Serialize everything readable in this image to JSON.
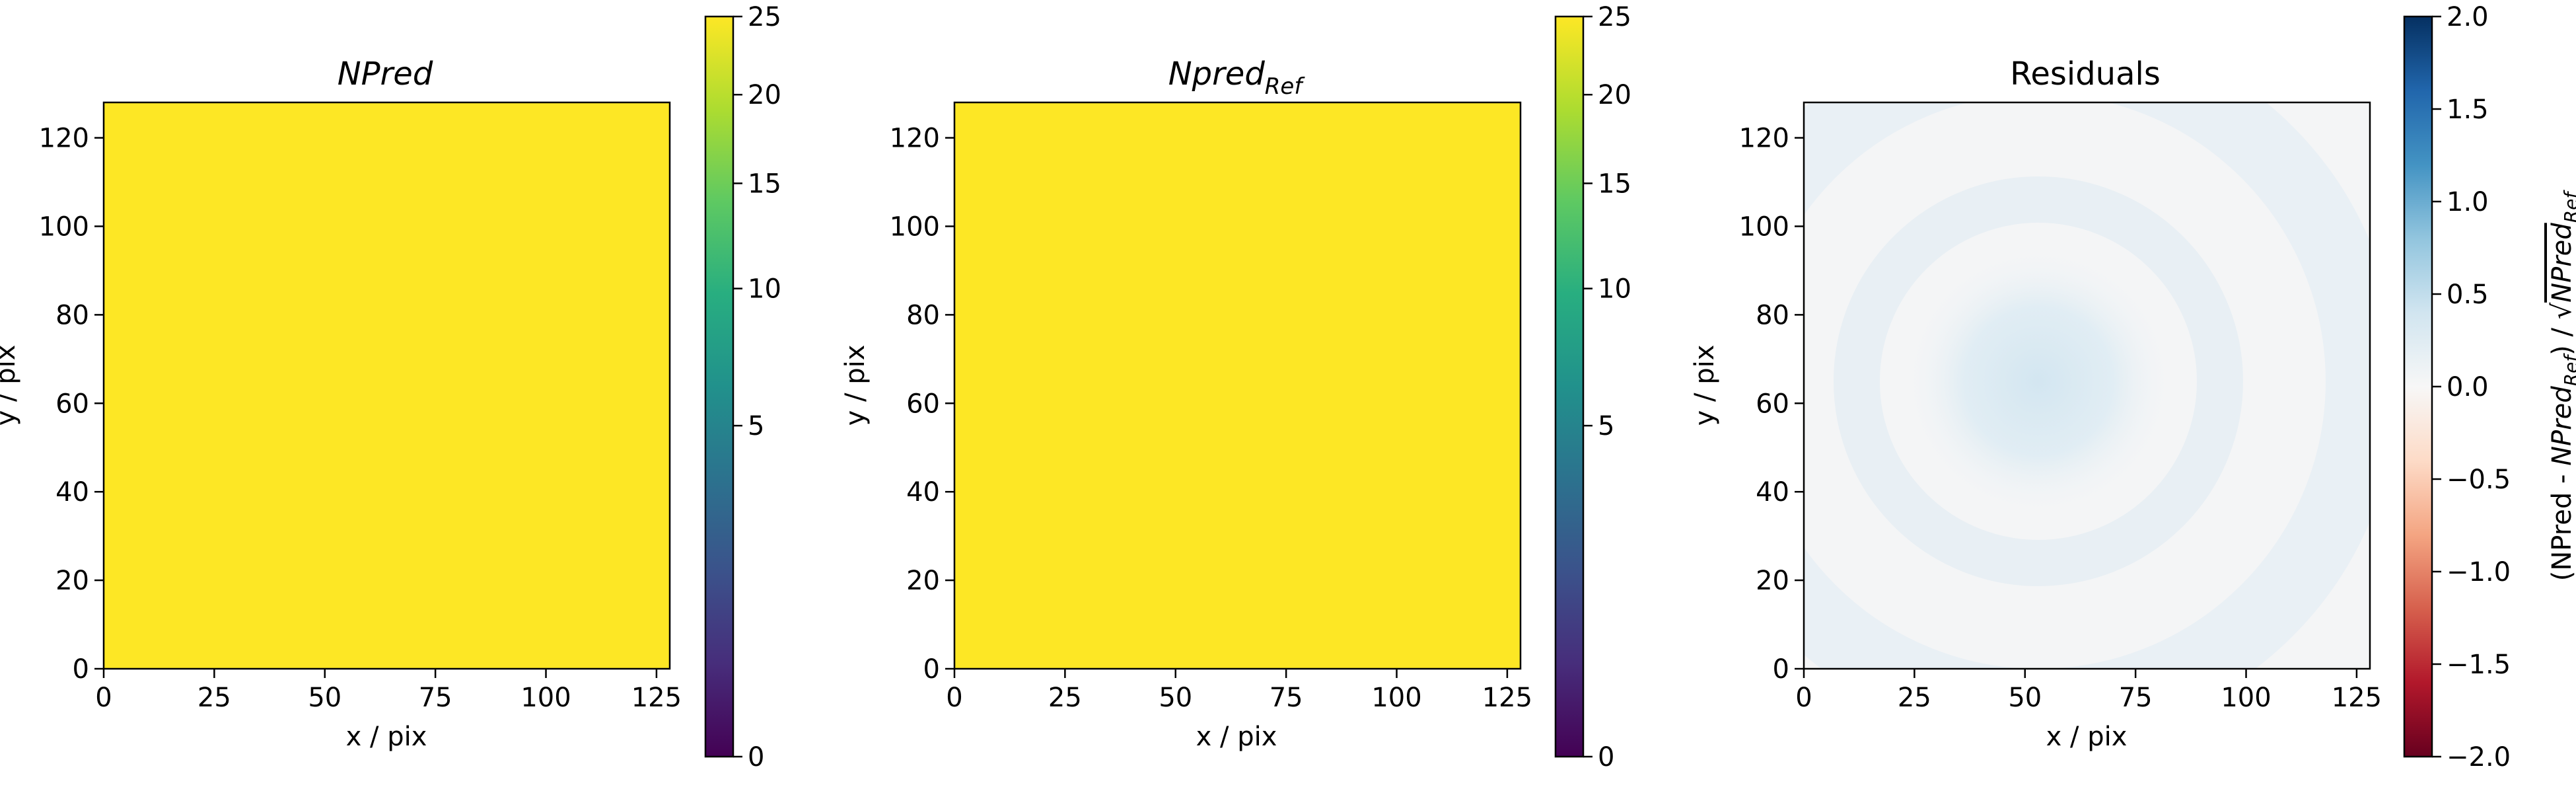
{
  "colors": {
    "heatmap_fill": "#fde725",
    "viridis_stops": [
      "#440154",
      "#472d7b",
      "#3b528b",
      "#2c728e",
      "#21918c",
      "#28ae80",
      "#5ec962",
      "#addc30",
      "#fde725"
    ],
    "rdbu_stops": [
      "#67001f",
      "#b2182b",
      "#d6604d",
      "#f4a582",
      "#fddbc7",
      "#f7f7f7",
      "#d1e5f0",
      "#92c5de",
      "#4393c3",
      "#2166ac",
      "#053061"
    ],
    "residual_background": "#f4f5f6"
  },
  "chart_data": [
    {
      "type": "heatmap",
      "title": "NPred",
      "title_style": "italic",
      "xlabel": "x / pix",
      "ylabel": "y / pix",
      "xlim": [
        0,
        128
      ],
      "ylim": [
        0,
        128
      ],
      "xticks": [
        0,
        25,
        50,
        75,
        100,
        125
      ],
      "yticks": [
        0,
        20,
        40,
        60,
        80,
        100,
        120
      ],
      "xtick_labels": [
        "0",
        "25",
        "50",
        "75",
        "100",
        "125"
      ],
      "ytick_labels": [
        "0",
        "20",
        "40",
        "60",
        "80",
        "100",
        "120"
      ],
      "values": "uniform",
      "approx_value": 25,
      "colorbar": {
        "colormap": "viridis",
        "scale": "sqrt",
        "range": [
          0,
          25
        ],
        "ticks": [
          0,
          5,
          10,
          15,
          20,
          25
        ],
        "tick_labels": [
          "0",
          "5",
          "10",
          "15",
          "20",
          "25"
        ],
        "label": ""
      }
    },
    {
      "type": "heatmap",
      "title": "Npred",
      "title_subscript": "Ref",
      "title_style": "italic",
      "xlabel": "x / pix",
      "ylabel": "y / pix",
      "xlim": [
        0,
        128
      ],
      "ylim": [
        0,
        128
      ],
      "xticks": [
        0,
        25,
        50,
        75,
        100,
        125
      ],
      "yticks": [
        0,
        20,
        40,
        60,
        80,
        100,
        120
      ],
      "xtick_labels": [
        "0",
        "25",
        "50",
        "75",
        "100",
        "125"
      ],
      "ytick_labels": [
        "0",
        "20",
        "40",
        "60",
        "80",
        "100",
        "120"
      ],
      "values": "uniform",
      "approx_value": 25,
      "colorbar": {
        "colormap": "viridis",
        "scale": "sqrt",
        "range": [
          0,
          25
        ],
        "ticks": [
          0,
          5,
          10,
          15,
          20,
          25
        ],
        "tick_labels": [
          "0",
          "5",
          "10",
          "15",
          "20",
          "25"
        ],
        "label": ""
      }
    },
    {
      "type": "heatmap",
      "title": "Residuals",
      "xlabel": "x / pix",
      "ylabel": "y / pix",
      "xlim": [
        0,
        128
      ],
      "ylim": [
        0,
        128
      ],
      "xticks": [
        0,
        25,
        50,
        75,
        100,
        125
      ],
      "yticks": [
        0,
        20,
        40,
        60,
        80,
        100,
        120
      ],
      "xtick_labels": [
        "0",
        "25",
        "50",
        "75",
        "100",
        "125"
      ],
      "ytick_labels": [
        "0",
        "20",
        "40",
        "60",
        "80",
        "100",
        "120"
      ],
      "values": "smooth residual map: weak positive blob centred near (53, 65) with faint rings",
      "features": [
        {
          "kind": "blob",
          "center": [
            53,
            65
          ],
          "approx_value": 0.45
        },
        {
          "kind": "ring",
          "center": [
            53,
            65
          ],
          "approx_value": 0.08
        }
      ],
      "colorbar": {
        "colormap": "RdBu",
        "scale": "linear",
        "range": [
          -2.0,
          2.0
        ],
        "ticks": [
          -2.0,
          -1.5,
          -1.0,
          -0.5,
          0.0,
          0.5,
          1.0,
          1.5,
          2.0
        ],
        "tick_labels": [
          "−2.0",
          "−1.5",
          "−1.0",
          "−0.5",
          "0.0",
          "0.5",
          "1.0",
          "1.5",
          "2.0"
        ],
        "label_pre": "(NPred - ",
        "label_sub_base": "NPred",
        "label_sub": "Ref",
        "label_mid": ") / √",
        "label_sqrt_base": "NPred",
        "label_sqrt_sub": "Ref"
      }
    }
  ]
}
